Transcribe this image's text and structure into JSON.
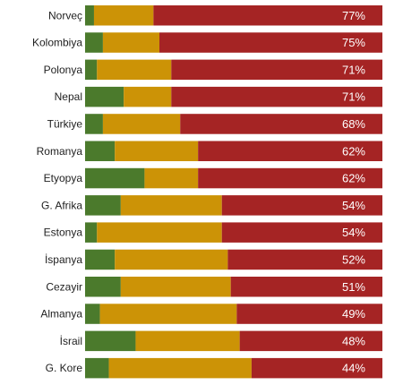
{
  "chart_data": {
    "type": "bar",
    "orientation": "horizontal",
    "stacked": true,
    "grid": false,
    "legend": "none",
    "xlim": [
      0,
      100
    ],
    "colors": {
      "green": "#4b7a2c",
      "yellow": "#cc9306",
      "red": "#a52424",
      "label": "#ffffff"
    },
    "rows": [
      {
        "name": "Norveç",
        "green": 3,
        "yellow": 20,
        "red": 77,
        "label": "77%"
      },
      {
        "name": "Kolombiya",
        "green": 6,
        "yellow": 19,
        "red": 75,
        "label": "75%"
      },
      {
        "name": "Polonya",
        "green": 4,
        "yellow": 25,
        "red": 71,
        "label": "71%"
      },
      {
        "name": "Nepal",
        "green": 13,
        "yellow": 16,
        "red": 71,
        "label": "71%"
      },
      {
        "name": "Türkiye",
        "green": 6,
        "yellow": 26,
        "red": 68,
        "label": "68%"
      },
      {
        "name": "Romanya",
        "green": 10,
        "yellow": 28,
        "red": 62,
        "label": "62%"
      },
      {
        "name": "Etyopya",
        "green": 20,
        "yellow": 18,
        "red": 62,
        "label": "62%"
      },
      {
        "name": "G. Afrika",
        "green": 12,
        "yellow": 34,
        "red": 54,
        "label": "54%"
      },
      {
        "name": "Estonya",
        "green": 4,
        "yellow": 42,
        "red": 54,
        "label": "54%"
      },
      {
        "name": "İspanya",
        "green": 10,
        "yellow": 38,
        "red": 52,
        "label": "52%"
      },
      {
        "name": "Cezayir",
        "green": 12,
        "yellow": 37,
        "red": 51,
        "label": "51%"
      },
      {
        "name": "Almanya",
        "green": 5,
        "yellow": 46,
        "red": 49,
        "label": "49%"
      },
      {
        "name": "İsrail",
        "green": 17,
        "yellow": 35,
        "red": 48,
        "label": "48%"
      },
      {
        "name": "G. Kore",
        "green": 8,
        "yellow": 48,
        "red": 44,
        "label": "44%"
      }
    ]
  }
}
